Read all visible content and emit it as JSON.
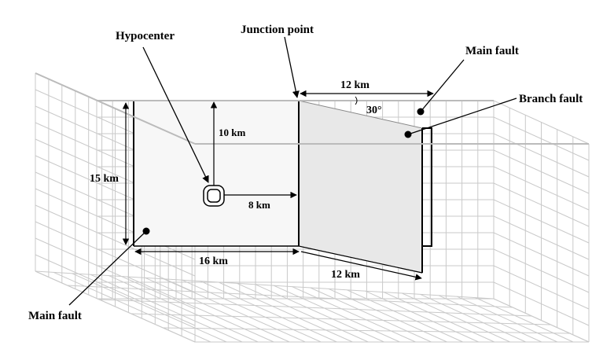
{
  "labels": {
    "hypocenter": "Hypocenter",
    "junction_point": "Junction point",
    "main_fault_top": "Main fault",
    "branch_fault": "Branch fault",
    "main_fault_bottom": "Main fault",
    "dim_12_top": "12 km",
    "angle": "30°",
    "dim_10": "10 km",
    "dim_15": "15 km",
    "dim_8": "8 km",
    "dim_16": "16 km",
    "dim_12_bottom": "12 km"
  },
  "colors": {
    "grid": "#c9c9c9",
    "main_fault_fill": "#f7f7f7",
    "branch_fault_fill": "#e8e8e8",
    "ink": "#000000"
  }
}
